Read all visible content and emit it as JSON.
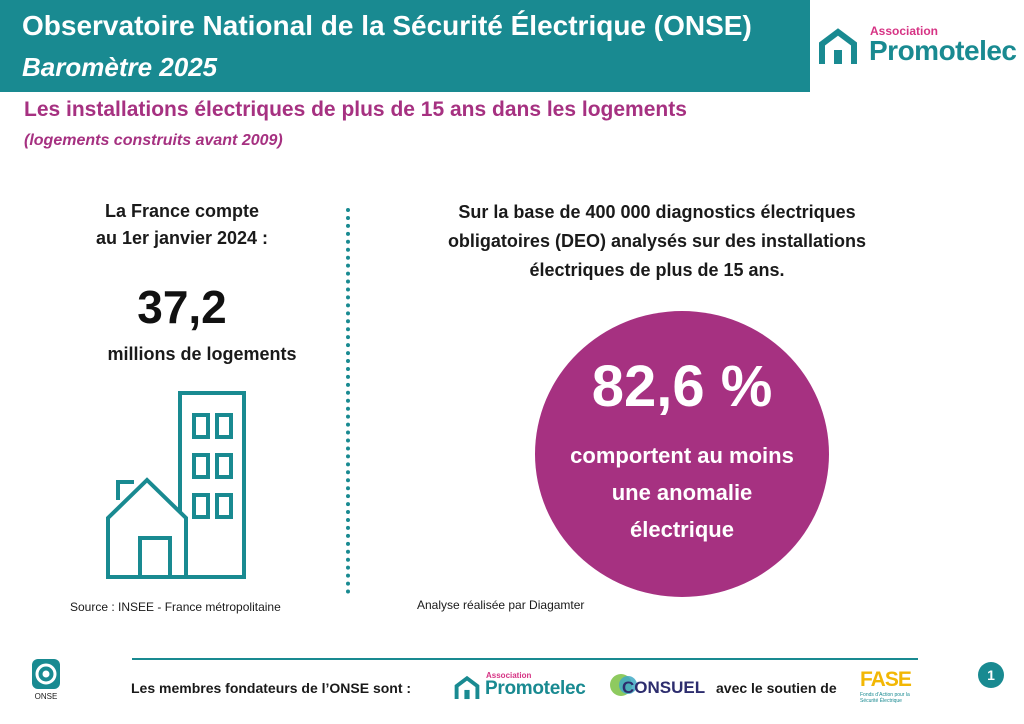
{
  "header": {
    "title": "Observatoire National de la Sécurité Électrique (ONSE)",
    "subtitle": "Baromètre 2025"
  },
  "brand": {
    "association_label": "Association",
    "name": "Promotelec",
    "icon": "house-outline-icon",
    "colors": {
      "teal": "#198a91",
      "magenta": "#a63181",
      "pink": "#d63384"
    }
  },
  "section": {
    "title": "Les installations électriques de plus de 15 ans dans les logements",
    "subtitle": "(logements construits avant 2009)"
  },
  "left_panel": {
    "intro_line1": "La France compte",
    "intro_line2": "au 1er janvier 2024 :",
    "number": "37,2",
    "unit": "millions de logements",
    "icon": "buildings-icon",
    "source": "Source : INSEE - France métropolitaine"
  },
  "right_panel": {
    "intro_line1": "Sur la base de 400 000 diagnostics électriques",
    "intro_line2": "obligatoires (DEO) analysés sur des installations",
    "intro_line3": "électriques de plus de 15 ans.",
    "stat_value": "82,6 %",
    "stat_line1": "comportent au moins",
    "stat_line2": "une anomalie",
    "stat_line3": "électrique",
    "source": "Analyse réalisée par Diagamter"
  },
  "footer": {
    "onse_label": "ONSE",
    "founders_text": "Les membres fondateurs de l’ONSE sont :",
    "partner_promotelec_assoc": "Association",
    "partner_promotelec": "Promotelec",
    "partner_consuel": "CONSUEL",
    "support_text": "avec le soutien de",
    "partner_fase": "FASE",
    "partner_fase_desc": "Fonds d’Action pour la Sécurité Électrique",
    "page_number": "1"
  }
}
